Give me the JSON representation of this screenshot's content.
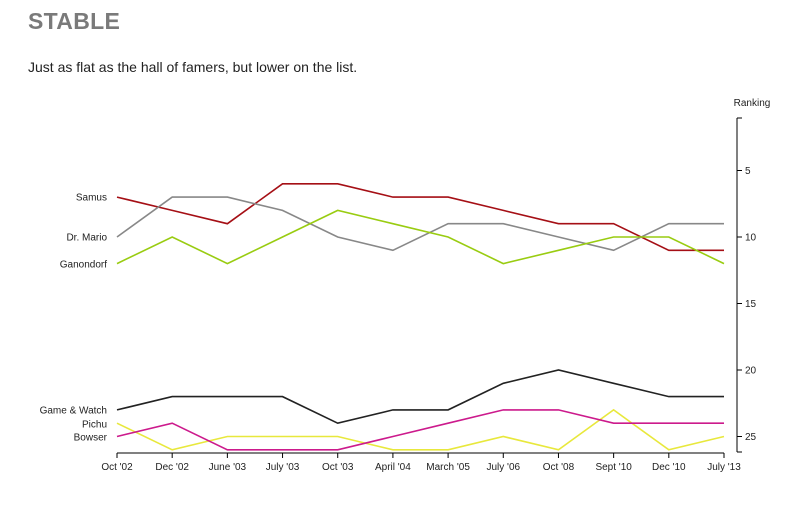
{
  "header": {
    "title": "STABLE",
    "subtitle": "Just as flat as the hall of famers, but lower on the list."
  },
  "chart_data": {
    "type": "line",
    "title": "STABLE",
    "subtitle": "Just as flat as the hall of famers, but lower on the list.",
    "xlabel": "",
    "ylabel": "Ranking",
    "ylim": [
      0,
      26
    ],
    "y_inverted": true,
    "y_axis_side": "right",
    "yticks": [
      5,
      10,
      15,
      20,
      25
    ],
    "categories": [
      "Oct '02",
      "Dec '02",
      "June '03",
      "July '03",
      "Oct '03",
      "April '04",
      "March '05",
      "July '06",
      "Oct '08",
      "Sept '10",
      "Dec '10",
      "July '13"
    ],
    "series": [
      {
        "name": "Samus",
        "color": "#a50f15",
        "values": [
          7,
          8,
          9,
          6,
          6,
          7,
          7,
          8,
          9,
          9,
          11,
          11
        ]
      },
      {
        "name": "Dr. Mario",
        "color": "#888888",
        "values": [
          10,
          7,
          7,
          8,
          10,
          11,
          9,
          9,
          10,
          11,
          9,
          9
        ]
      },
      {
        "name": "Ganondorf",
        "color": "#99cc11",
        "values": [
          12,
          10,
          12,
          10,
          8,
          9,
          10,
          12,
          11,
          10,
          10,
          12
        ]
      },
      {
        "name": "Game & Watch",
        "color": "#222222",
        "values": [
          23,
          22,
          22,
          22,
          24,
          23,
          23,
          21,
          20,
          21,
          22,
          22
        ]
      },
      {
        "name": "Pichu",
        "color": "#e8e83c",
        "values": [
          24,
          26,
          25,
          25,
          25,
          26,
          26,
          25,
          26,
          23,
          26,
          25
        ]
      },
      {
        "name": "Bowser",
        "color": "#cc1a8c",
        "values": [
          25,
          24,
          26,
          26,
          26,
          25,
          24,
          23,
          23,
          24,
          24,
          24
        ]
      }
    ]
  }
}
